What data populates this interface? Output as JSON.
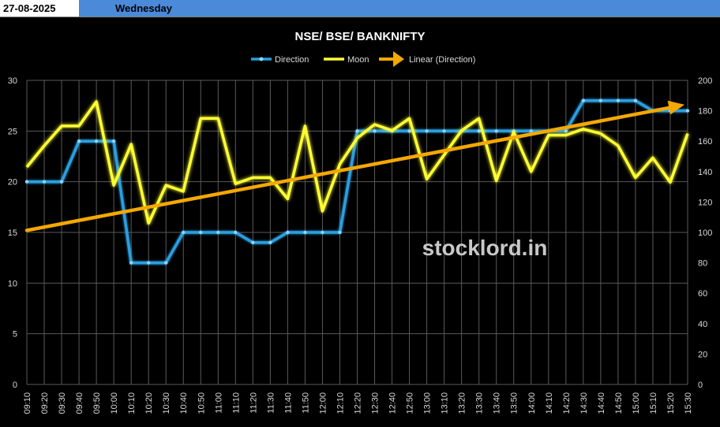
{
  "header": {
    "date": "27-08-2025",
    "day": "Wednesday"
  },
  "watermark": "stocklord.in",
  "chart_data": {
    "type": "line",
    "title": "NSE/ BSE/ BANKNIFTY",
    "categories": [
      "09:10",
      "09:20",
      "09:30",
      "09:40",
      "09:50",
      "10:00",
      "10:10",
      "10:20",
      "10:30",
      "10:40",
      "10:50",
      "11:00",
      "11:10",
      "11:20",
      "11:30",
      "11:40",
      "11:50",
      "12:00",
      "12:10",
      "12:20",
      "12:30",
      "12:40",
      "12:50",
      "13:00",
      "13:10",
      "13:20",
      "13:30",
      "13:40",
      "13:50",
      "14:00",
      "14:10",
      "14:20",
      "14:30",
      "14:40",
      "14:50",
      "15:00",
      "15:10",
      "15:20",
      "15:30"
    ],
    "y_left": {
      "min": 0,
      "max": 30,
      "ticks": [
        0,
        5,
        10,
        15,
        20,
        25,
        30
      ]
    },
    "y_right": {
      "min": 0,
      "max": 200,
      "ticks": [
        0,
        20,
        40,
        60,
        80,
        100,
        120,
        140,
        160,
        180,
        200
      ]
    },
    "legend_position": "top",
    "series": [
      {
        "name": "Direction",
        "axis": "left",
        "color": "#2a9fe0",
        "values": [
          20,
          20,
          20,
          24,
          24,
          24,
          12,
          12,
          12,
          15,
          15,
          15,
          15,
          14,
          14,
          15,
          15,
          15,
          15,
          25,
          25,
          25,
          25,
          25,
          25,
          25,
          25,
          25,
          25,
          25,
          25,
          25,
          28,
          28,
          28,
          28,
          27,
          27,
          27
        ]
      },
      {
        "name": "Moon",
        "axis": "right",
        "color": "#ffff33",
        "values": [
          143,
          157,
          170,
          170,
          186,
          131,
          158,
          106,
          131,
          127,
          175,
          175,
          132,
          136,
          136,
          122,
          170,
          114,
          145,
          162,
          171,
          167,
          175,
          135,
          151,
          167,
          175,
          134,
          166,
          140,
          164,
          164,
          168,
          165,
          157,
          136,
          149,
          133,
          165
        ]
      },
      {
        "name": "Linear (Direction)",
        "axis": "left",
        "color": "#f5a800",
        "trend": true,
        "start": 15.2,
        "end": 27.6
      }
    ]
  }
}
